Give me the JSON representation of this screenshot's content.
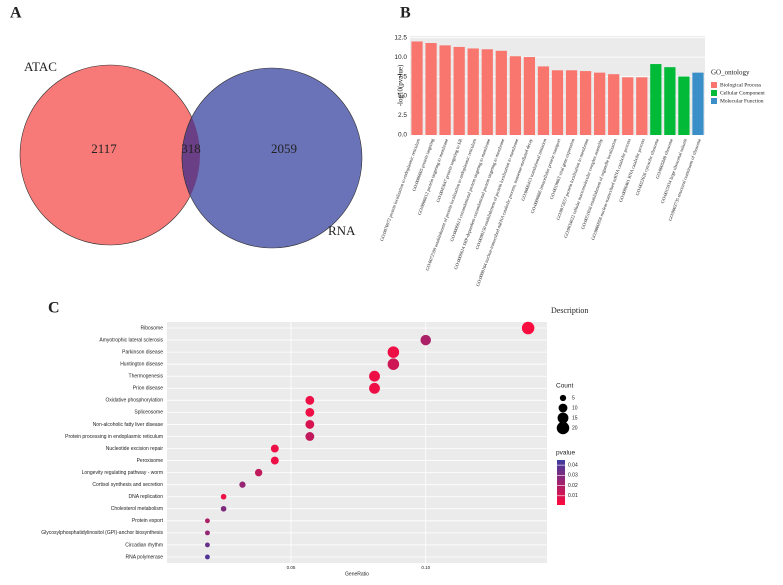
{
  "chart_data": [
    {
      "type": "venn",
      "panel": "A",
      "sets": [
        {
          "name": "ATAC",
          "color": "#f77a78",
          "value": 2117
        },
        {
          "name": "RNA",
          "color": "#6a73b7",
          "value": 2059
        }
      ],
      "overlap": 318,
      "overlap_color": "#6a3f86"
    },
    {
      "type": "bar",
      "panel": "B",
      "ylabel": "-log10(pvalue)",
      "legend_title": "GO_ontology",
      "grid": true,
      "categories": [
        "GO:0070972 protein localization to endoplasmic reticulum",
        "GO:0006605 protein targeting",
        "GO:0006612 protein targeting to membrane",
        "GO:0045047 protein targeting to ER",
        "GO:0072599 establishment of protein localization to endoplasmic reticulum",
        "GO:0006613 cotranslational protein targeting to membrane",
        "GO:0006614 SRP-dependent cotranslational protein targeting to membrane",
        "GO:0090150 establishment of protein localization to membrane",
        "GO:0000184 nuclear-transcribed mRNA catabolic process, nonsense-mediated decay",
        "GO:0006413 translational initiation",
        "GO:0006886 intracellular protein transport",
        "GO:0019083 viral gene expression",
        "GO:0072657 protein localization to membrane",
        "GO:0034622 cellular macromolecular complex assembly",
        "GO:0051656 establishment of organelle localization",
        "GO:0000956 nuclear-transcribed mRNA catabolic process",
        "GO:0006401 RNA catabolic process",
        "GO:0022626 cytosolic ribosome",
        "GO:0005840 ribosome",
        "GO:0015934 large ribosomal subunit",
        "GO:0003735 structural constituent of ribosome"
      ],
      "series": [
        {
          "name": "Biological Process",
          "color": "#f8766d",
          "values": [
            12.0,
            11.8,
            11.5,
            11.3,
            11.1,
            11.0,
            10.8,
            10.1,
            10.0,
            8.8,
            8.3,
            8.3,
            8.2,
            8.0,
            7.8,
            7.4,
            7.4,
            null,
            null,
            null,
            null
          ]
        },
        {
          "name": "Cellular Component",
          "color": "#00ba38",
          "values": [
            null,
            null,
            null,
            null,
            null,
            null,
            null,
            null,
            null,
            null,
            null,
            null,
            null,
            null,
            null,
            null,
            null,
            9.1,
            8.7,
            7.5,
            null
          ]
        },
        {
          "name": "Molecular Function",
          "color": "#3b8fc9",
          "values": [
            null,
            null,
            null,
            null,
            null,
            null,
            null,
            null,
            null,
            null,
            null,
            null,
            null,
            null,
            null,
            null,
            null,
            null,
            null,
            null,
            8.0
          ]
        }
      ],
      "ylim": [
        0,
        12.7
      ],
      "yticks": [
        {
          "value": 0,
          "label": "0.0"
        },
        2.5,
        {
          "value": 5,
          "label": "5.0"
        },
        7.5,
        {
          "value": 10,
          "label": "10.0"
        },
        12.5
      ]
    },
    {
      "type": "dot",
      "panel": "C",
      "header": "Description",
      "xlabel": "GeneRatio",
      "grid": true,
      "categories": [
        "Ribosome",
        "Amyotrophic lateral sclerosis",
        "Parkinson disease",
        "Huntington disease",
        "Thermogenesis",
        "Prion disease",
        "Oxidative phosphorylation",
        "Spliceosome",
        "Non-alcoholic fatty liver disease",
        "Protein processing in endoplasmic reticulum",
        "Nucleotide excision repair",
        "Peroxisome",
        "Longevity regulating pathway - worm",
        "Cortisol synthesis and secretion",
        "DNA replication",
        "Cholesterol metabolism",
        "Protein export",
        "Glycosylphosphatidylinositol (GPI)-anchor biosynthesis",
        "Circadian rhythm",
        "RNA polymerase"
      ],
      "values": [
        0.138,
        0.1,
        0.088,
        0.088,
        0.081,
        0.081,
        0.057,
        0.057,
        0.057,
        0.057,
        0.044,
        0.044,
        0.038,
        0.032,
        0.025,
        0.025,
        0.019,
        0.019,
        0.019,
        0.019
      ],
      "sizes": [
        20,
        14,
        17,
        17,
        15,
        15,
        10,
        10,
        10,
        10,
        8,
        8,
        7,
        5,
        4,
        4,
        3,
        3,
        3,
        3
      ],
      "pvalues": [
        0.002,
        0.02,
        0.005,
        0.012,
        0.005,
        0.005,
        0.005,
        0.005,
        0.01,
        0.015,
        0.005,
        0.005,
        0.015,
        0.025,
        0.005,
        0.03,
        0.02,
        0.025,
        0.035,
        0.04
      ],
      "xlim": [
        0.004,
        0.145
      ],
      "xticks": [
        0.05,
        {
          "value": 0.1,
          "label": "0.10"
        }
      ],
      "size_title": "Count",
      "size_ticks": [
        5,
        10,
        15,
        20
      ],
      "color_title": "pvalue",
      "color_ticks": [
        0.01,
        0.02,
        0.03,
        0.04
      ],
      "color_lim": [
        0.001,
        0.045
      ],
      "color_scale": [
        "#ff0a3c",
        "#3c3ca0"
      ]
    }
  ]
}
